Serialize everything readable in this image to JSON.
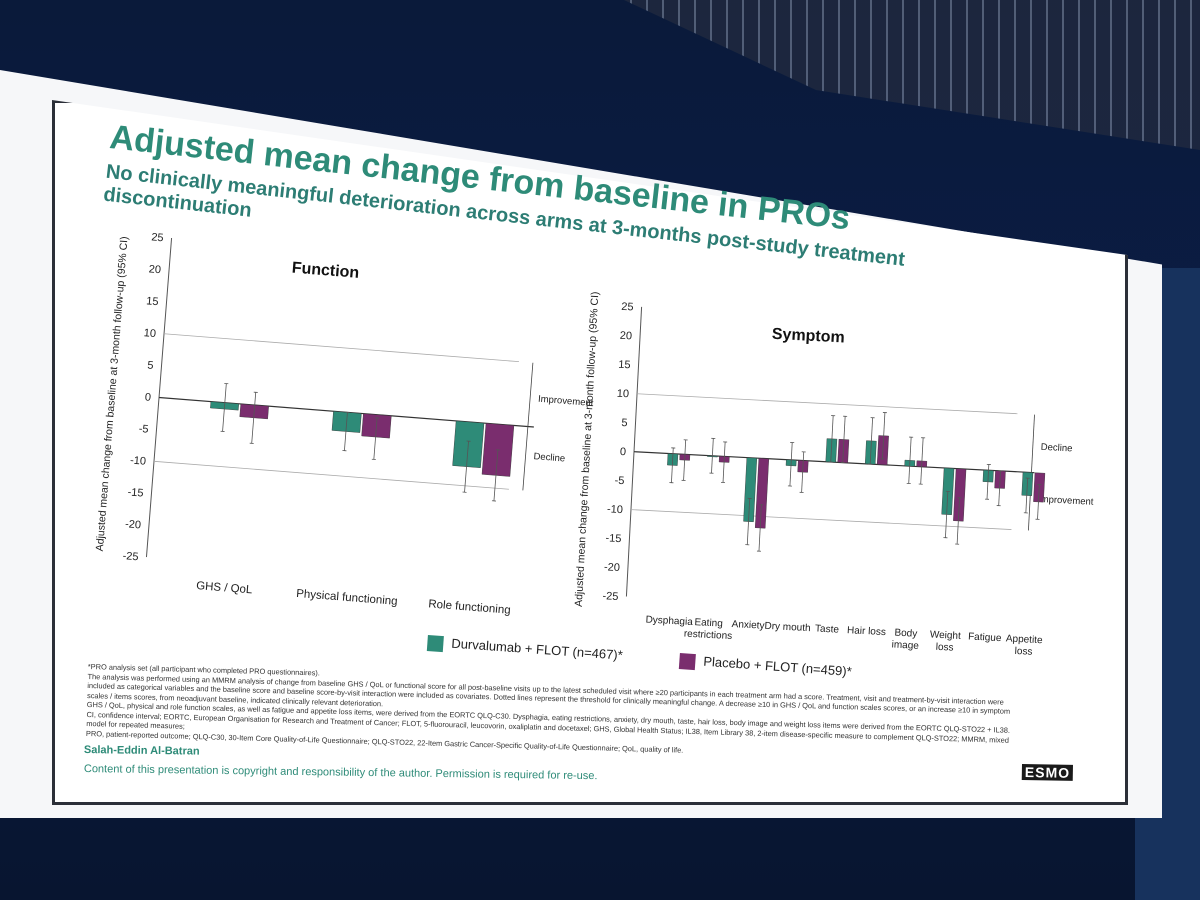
{
  "slide": {
    "title": "Adjusted mean change from baseline in PROs",
    "subtitle_line1": "No clinically meaningful deterioration across arms at 3-months post-study treatment discontinuation",
    "subtitle_line2": "",
    "author": "Salah-Eddin Al-Batran",
    "copyright": "Content of this presentation is copyright and responsibility of the author. Permission is required for re-use.",
    "logo_text": "ESMO",
    "footnotes": [
      "*PRO analysis set (all participant who completed PRO questionnaires).",
      "The analysis was performed using an MMRM analysis of change from baseline GHS / QoL or functional score for all post-baseline visits up to the latest scheduled visit where ≥20 participants in each treatment arm had a score. Treatment, visit and treatment-by-visit interaction were included as categorical variables and the baseline score and baseline score-by-visit interaction were included as covariates. Dotted lines represent the threshold for clinically meaningful change. A decrease ≥10 in GHS / QoL and function scales scores, or an increase ≥10 in symptom scales / items scores, from neoadjuvant baseline, indicated clinically relevant deterioration.",
      "GHS / QoL, physical and role function scales, as well as fatigue and appetite loss items, were derived from the EORTC QLQ-C30. Dysphagia, eating restrictions, anxiety, dry mouth, taste, hair loss, body image and weight loss items were derived from the EORTC QLQ-STO22 + IL38.",
      "CI, confidence interval; EORTC, European Organisation for Research and Treatment of Cancer; FLOT, 5-fluorouracil, leucovorin, oxaliplatin and docetaxel; GHS, Global Health Status; IL38, Item Library 38, 2-item disease-specific measure to complement QLQ-STO22; MMRM, mixed model for repeated measures;",
      "PRO, patient-reported outcome; QLQ-C30, 30-Item Core Quality-of-Life Questionnaire; QLQ-STO22, 22-Item Gastric Cancer-Specific Quality-of-Life Questionnaire; QoL, quality of life."
    ]
  },
  "legend": {
    "durva_label": "Durvalumab + FLOT (n=467)*",
    "placebo_label": "Placebo + FLOT (n=459)*"
  },
  "colors": {
    "durva": "#2e8b78",
    "placebo": "#7a2d6e",
    "title": "#2e8b78"
  },
  "chart_data": [
    {
      "type": "bar",
      "title": "Function",
      "ylabel": "Adjusted mean change from baseline at 3-month follow-up (95% CI)",
      "ylim": [
        -25,
        25
      ],
      "yticks": [
        25,
        20,
        15,
        10,
        5,
        0,
        -5,
        -10,
        -15,
        -20,
        -25
      ],
      "categories": [
        "GHS / QoL",
        "Physical functioning",
        "Role functioning"
      ],
      "thresholds": [
        10,
        -10
      ],
      "annotations": [
        "Improvement",
        "Decline"
      ],
      "series": [
        {
          "name": "Durvalumab + FLOT (n=467)*",
          "values": [
            -1,
            -3,
            -7
          ],
          "ci_low": [
            -4.5,
            -6,
            -11
          ],
          "ci_high": [
            3,
            0,
            -3
          ]
        },
        {
          "name": "Placebo + FLOT (n=459)*",
          "values": [
            -2,
            -3.5,
            -8
          ],
          "ci_low": [
            -6,
            -7,
            -12
          ],
          "ci_high": [
            2,
            -0.5,
            -4
          ]
        }
      ]
    },
    {
      "type": "bar",
      "title": "Symptom",
      "ylabel": "Adjusted mean change from baseline at 3-month follow-up (95% CI)",
      "ylim": [
        -25,
        25
      ],
      "yticks": [
        25,
        20,
        15,
        10,
        5,
        0,
        -5,
        -10,
        -15,
        -20,
        -25
      ],
      "categories": [
        "Dysphagia",
        "Eating restrictions",
        "Anxiety",
        "Dry mouth",
        "Taste",
        "Hair loss",
        "Body image",
        "Weight loss",
        "Fatigue",
        "Appetite loss"
      ],
      "thresholds": [
        10,
        -10
      ],
      "annotations": [
        "Decline",
        "Improvement"
      ],
      "series": [
        {
          "name": "Durvalumab + FLOT (n=467)*",
          "values": [
            -2,
            0,
            -11,
            -1,
            4,
            4,
            1,
            -8,
            -2,
            -4
          ],
          "ci_low": [
            -5,
            -3,
            -15,
            -4.5,
            0,
            0,
            -3,
            -12,
            -5,
            -7
          ],
          "ci_high": [
            1,
            3,
            -7,
            3,
            8,
            8,
            5,
            -4,
            1,
            -1
          ]
        },
        {
          "name": "Placebo + FLOT (n=459)*",
          "values": [
            -1,
            -1,
            -12,
            -2,
            4,
            5,
            1,
            -9,
            -3,
            -5
          ],
          "ci_low": [
            -4.5,
            -4.5,
            -16,
            -5.5,
            0,
            1,
            -3,
            -13,
            -6,
            -8
          ],
          "ci_high": [
            2.5,
            2.5,
            -8,
            1.5,
            8,
            9,
            5,
            -5,
            0,
            -2
          ]
        }
      ]
    }
  ]
}
